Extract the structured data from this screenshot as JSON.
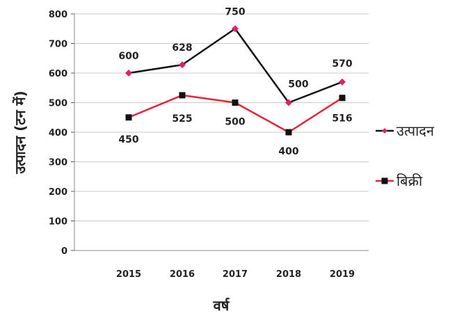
{
  "chart_data": {
    "type": "line",
    "categories": [
      "2015",
      "2016",
      "2017",
      "2018",
      "2019"
    ],
    "series": [
      {
        "name": "उत्पादन",
        "values": [
          600,
          628,
          750,
          500,
          570
        ],
        "color": "#e0206a",
        "line_color": "#111111",
        "marker": "diamond"
      },
      {
        "name": "बिक्री",
        "values": [
          450,
          525,
          500,
          400,
          516
        ],
        "color": "#111111",
        "line_color": "#e8223a",
        "marker": "square"
      }
    ],
    "xlabel": "वर्ष",
    "ylabel": "उत्पादन (टन में)",
    "ylim": [
      0,
      800
    ],
    "yticks": [
      0,
      100,
      200,
      300,
      400,
      500,
      600,
      700,
      800
    ],
    "grid": true,
    "legend_position": "right"
  }
}
